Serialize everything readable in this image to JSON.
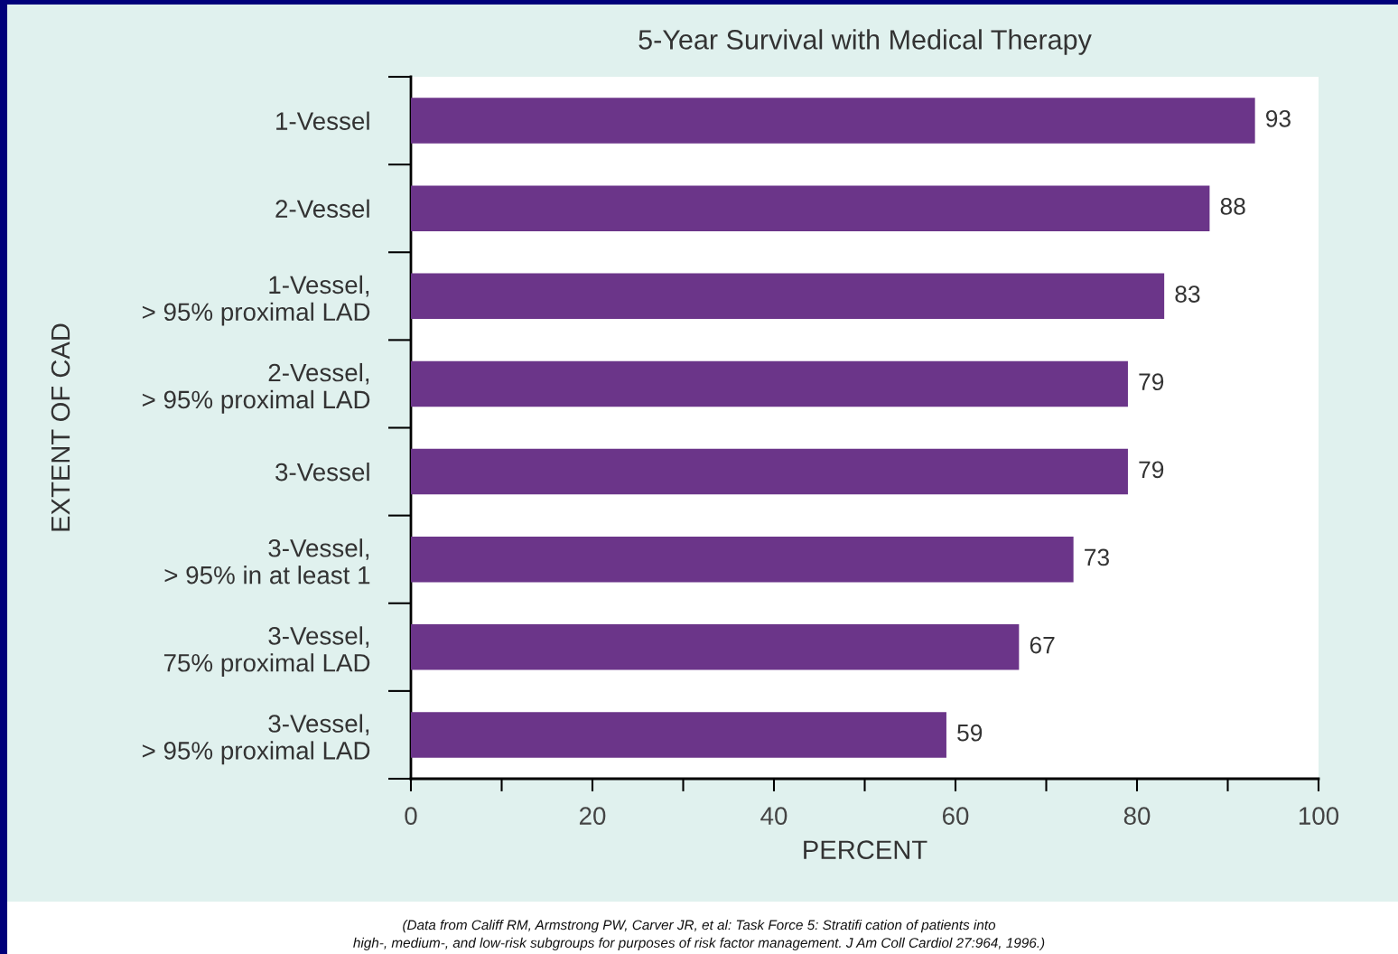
{
  "chart_data": {
    "type": "bar",
    "orientation": "horizontal",
    "title": "5-Year Survival with Medical Therapy",
    "xlabel": "PERCENT",
    "ylabel": "EXTENT OF CAD",
    "categories": [
      "1-Vessel",
      "2-Vessel",
      "1-Vessel,\n> 95% proximal LAD",
      "2-Vessel,\n> 95% proximal LAD",
      "3-Vessel",
      "3-Vessel,\n> 95% in at least 1",
      "3-Vessel,\n75% proximal LAD",
      "3-Vessel,\n> 95% proximal LAD"
    ],
    "values": [
      93,
      88,
      83,
      79,
      79,
      73,
      67,
      59
    ],
    "color": "#6b3589",
    "data_labels": true,
    "xlim": [
      0,
      100
    ],
    "xticks": [
      0,
      {
        "value": 10,
        "label": null
      },
      20,
      {
        "value": 30,
        "label": null
      },
      40,
      {
        "value": 50,
        "label": null
      },
      60,
      {
        "value": 70,
        "label": null
      },
      80,
      {
        "value": 90,
        "label": null
      },
      100
    ],
    "grid": false,
    "legend": false,
    "annotations": [
      "(Data from Califf RM, Armstrong PW, Carver JR, et al: Task Force 5: Stratifi cation of patients into\nhigh-, medium-, and low-risk subgroups for purposes of risk factor management. J Am Coll Cardiol 27:964, 1996.)"
    ]
  }
}
